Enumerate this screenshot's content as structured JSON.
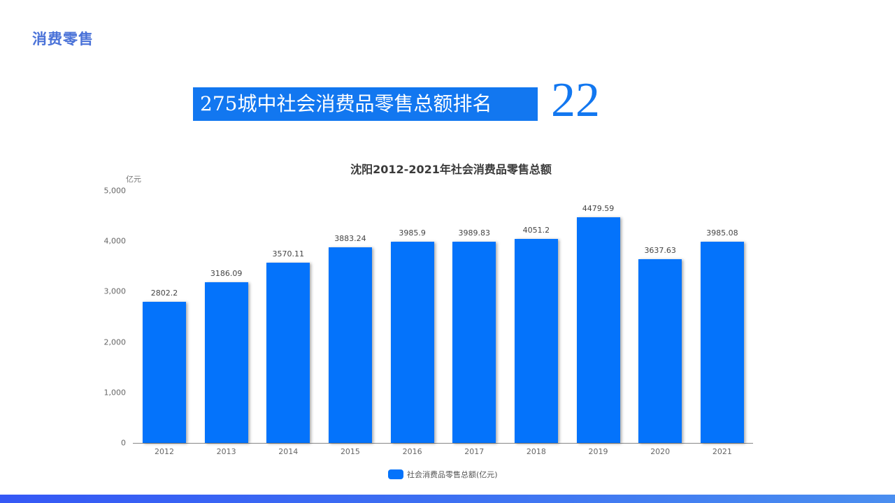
{
  "page": {
    "section_title": "消费零售",
    "headline": "275城中社会消费品零售总额排名",
    "rank": "22",
    "colors": {
      "accent": "#1277f0",
      "bar": "#0473fb",
      "section_title": "#4a72d8",
      "bottom_band_start": "#3558f5",
      "bottom_band_end": "#4a8ef0"
    }
  },
  "chart_data": {
    "type": "bar",
    "title": "沈阳2012-2021年社会消费品零售总额",
    "xlabel": "",
    "ylabel": "亿元",
    "ylim": [
      0,
      5000
    ],
    "yticks": [
      "0",
      "1,000",
      "2,000",
      "3,000",
      "4,000",
      "5,000"
    ],
    "grid": false,
    "legend_position": "bottom",
    "categories": [
      "2012",
      "2013",
      "2014",
      "2015",
      "2016",
      "2017",
      "2018",
      "2019",
      "2020",
      "2021"
    ],
    "series": [
      {
        "name": "社会消费品零售总额(亿元)",
        "values": [
          2802.2,
          3186.09,
          3570.11,
          3883.24,
          3985.9,
          3989.83,
          4051.2,
          4479.59,
          3637.63,
          3985.08
        ],
        "labels": [
          "2802.2",
          "3186.09",
          "3570.11",
          "3883.24",
          "3985.9",
          "3989.83",
          "4051.2",
          "4479.59",
          "3637.63",
          "3985.08"
        ]
      }
    ]
  }
}
